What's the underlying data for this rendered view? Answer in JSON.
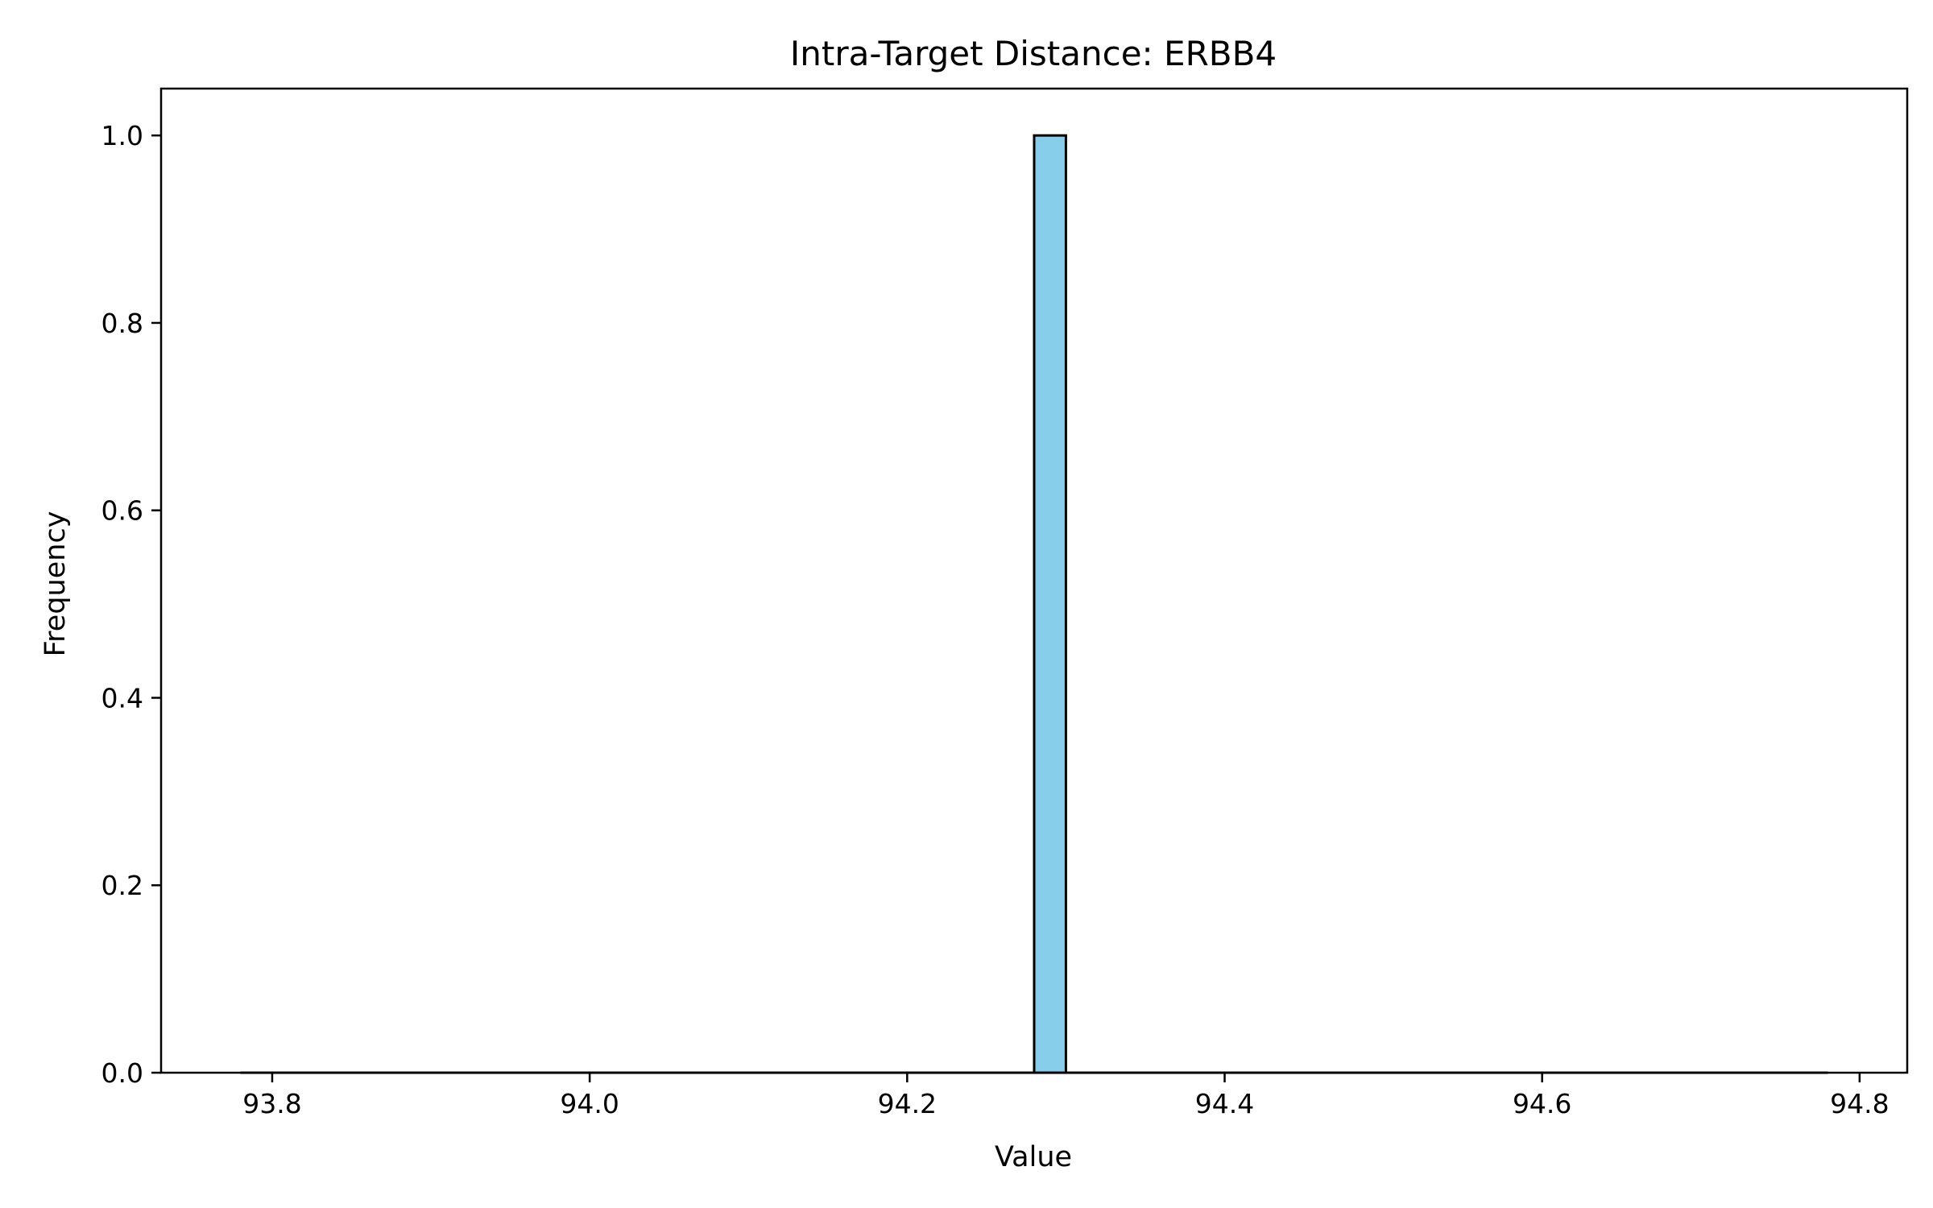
{
  "chart_data": {
    "type": "bar",
    "title": "Intra-Target Distance: ERBB4",
    "xlabel": "Value",
    "ylabel": "Frequency",
    "xlim": [
      93.73,
      94.83
    ],
    "ylim": [
      0.0,
      1.05
    ],
    "x_ticks": [
      93.8,
      94.0,
      94.2,
      94.4,
      94.6,
      94.8
    ],
    "x_tick_labels": [
      "93.8",
      "94.0",
      "94.2",
      "94.4",
      "94.6",
      "94.8"
    ],
    "y_ticks": [
      0.0,
      0.2,
      0.4,
      0.6,
      0.8,
      1.0
    ],
    "y_tick_labels": [
      "0.0",
      "0.2",
      "0.4",
      "0.6",
      "0.8",
      "1.0"
    ],
    "bins_range": [
      93.78,
      94.78
    ],
    "bins": [
      {
        "x0": 94.28,
        "x1": 94.3,
        "count": 1.0
      }
    ],
    "bar_color": "#87CEEB",
    "edge_color": "#000000",
    "grid": false,
    "legend": "none"
  }
}
